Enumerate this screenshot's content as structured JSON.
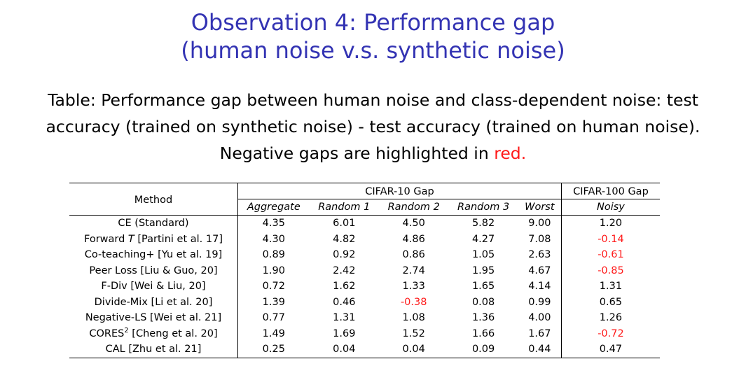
{
  "slide": {
    "title_line1": "Observation 4: Performance gap",
    "title_line2": "(human noise v.s. synthetic noise)",
    "caption_line1": "Table: Performance gap between human noise and class-dependent noise: test",
    "caption_line2": "accuracy (trained on synthetic noise) - test accuracy (trained on human noise).",
    "caption_line3_prefix": "Negative gaps are highlighted in ",
    "caption_line3_red": "red."
  },
  "colors": {
    "title": "#3333b3",
    "negative": "#ff1a1a"
  },
  "table": {
    "method_header": "Method",
    "cifar10_header": "CIFAR-10 Gap",
    "cifar100_header": "CIFAR-100 Gap",
    "subheaders": [
      "Aggregate",
      "Random 1",
      "Random 2",
      "Random 3",
      "Worst",
      "Noisy"
    ],
    "rows": [
      {
        "method": "CE (Standard)",
        "values": [
          "4.35",
          "6.01",
          "4.50",
          "5.82",
          "9.00",
          "1.20"
        ],
        "negative": [
          false,
          false,
          false,
          false,
          false,
          false
        ]
      },
      {
        "method_pre": "Forward ",
        "method_italic": "T",
        "method_post": " [Partini et al. 17]",
        "values": [
          "4.30",
          "4.82",
          "4.86",
          "4.27",
          "7.08",
          "-0.14"
        ],
        "negative": [
          false,
          false,
          false,
          false,
          false,
          true
        ]
      },
      {
        "method": "Co-teaching+ [Yu et al. 19]",
        "values": [
          "0.89",
          "0.92",
          "0.86",
          "1.05",
          "2.63",
          "-0.61"
        ],
        "negative": [
          false,
          false,
          false,
          false,
          false,
          true
        ]
      },
      {
        "method": "Peer Loss [Liu & Guo, 20]",
        "values": [
          "1.90",
          "2.42",
          "2.74",
          "1.95",
          "4.67",
          "-0.85"
        ],
        "negative": [
          false,
          false,
          false,
          false,
          false,
          true
        ]
      },
      {
        "method": "F-Div [Wei & Liu, 20]",
        "values": [
          "0.72",
          "1.62",
          "1.33",
          "1.65",
          "4.14",
          "1.31"
        ],
        "negative": [
          false,
          false,
          false,
          false,
          false,
          false
        ]
      },
      {
        "method": "Divide-Mix [Li et al. 20]",
        "values": [
          "1.39",
          "0.46",
          "-0.38",
          "0.08",
          "0.99",
          "0.65"
        ],
        "negative": [
          false,
          false,
          true,
          false,
          false,
          false
        ]
      },
      {
        "method": "Negative-LS [Wei et al. 21]",
        "values": [
          "0.77",
          "1.31",
          "1.08",
          "1.36",
          "4.00",
          "1.26"
        ],
        "negative": [
          false,
          false,
          false,
          false,
          false,
          false
        ]
      },
      {
        "method_pre": "CORES",
        "method_sup": "2",
        "method_post": " [Cheng et al. 20]",
        "values": [
          "1.49",
          "1.69",
          "1.52",
          "1.66",
          "1.67",
          "-0.72"
        ],
        "negative": [
          false,
          false,
          false,
          false,
          false,
          true
        ]
      },
      {
        "method": "CAL [Zhu et al. 21]",
        "values": [
          "0.25",
          "0.04",
          "0.04",
          "0.09",
          "0.44",
          "0.47"
        ],
        "negative": [
          false,
          false,
          false,
          false,
          false,
          false
        ]
      }
    ]
  }
}
